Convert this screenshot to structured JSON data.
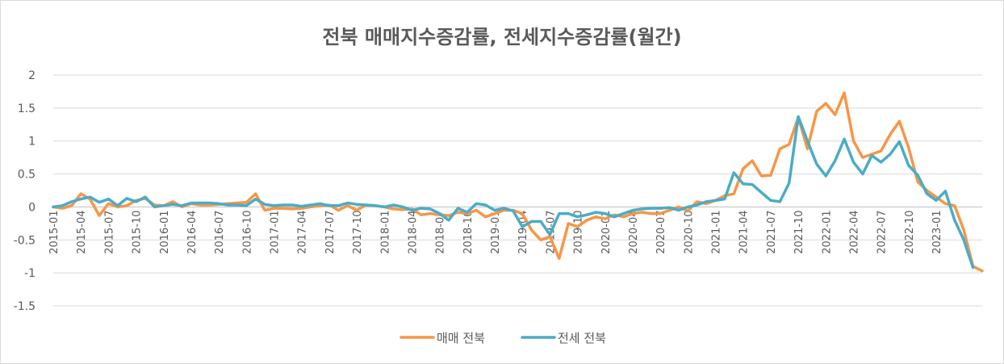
{
  "chart_data": {
    "type": "line",
    "title": "전북 매매지수증감률, 전세지수증감률(월간)",
    "xlabel": "",
    "ylabel": "",
    "ylim": [
      -1.5,
      2
    ],
    "yticks": [
      -1.5,
      -1,
      -0.5,
      0,
      0.5,
      1,
      1.5,
      2
    ],
    "grid": true,
    "legend_position": "bottom",
    "x_start": "2015-01",
    "x_labels": [
      "2015-01",
      "2015-04",
      "2015-07",
      "2015-10",
      "2016-01",
      "2016-04",
      "2016-07",
      "2016-10",
      "2017-01",
      "2017-04",
      "2017-07",
      "2017-10",
      "2018-01",
      "2018-04",
      "2018-07",
      "2018-10",
      "2019-01",
      "2019-04",
      "2019-07",
      "2019-10",
      "2020-01",
      "2020-04",
      "2020-07",
      "2020-10",
      "2021-01",
      "2021-04",
      "2021-07",
      "2021-10",
      "2022-01",
      "2022-04",
      "2022-07",
      "2022-10",
      "2023-01"
    ],
    "series": [
      {
        "name": "매매 전북",
        "color": "#F79646",
        "values": [
          0.0,
          -0.02,
          0.02,
          0.2,
          0.12,
          -0.13,
          0.05,
          0.0,
          0.02,
          0.1,
          0.13,
          0.03,
          0.02,
          0.08,
          0.0,
          0.05,
          0.03,
          0.03,
          0.04,
          0.05,
          0.06,
          0.07,
          0.2,
          -0.05,
          -0.02,
          -0.02,
          -0.03,
          -0.02,
          0.0,
          0.02,
          0.03,
          -0.05,
          0.02,
          -0.05,
          0.03,
          0.02,
          0.0,
          -0.03,
          -0.04,
          -0.03,
          -0.12,
          -0.1,
          -0.12,
          -0.13,
          -0.08,
          -0.1,
          -0.05,
          -0.15,
          -0.1,
          -0.05,
          -0.05,
          -0.1,
          -0.35,
          -0.5,
          -0.45,
          -0.78,
          -0.25,
          -0.3,
          -0.2,
          -0.15,
          -0.18,
          -0.12,
          -0.15,
          -0.1,
          -0.08,
          -0.1,
          -0.1,
          -0.05,
          0.0,
          -0.06,
          0.08,
          0.05,
          0.1,
          0.17,
          0.2,
          0.58,
          0.7,
          0.47,
          0.48,
          0.88,
          0.95,
          1.36,
          0.88,
          1.45,
          1.57,
          1.4,
          1.73,
          1.0,
          0.75,
          0.8,
          0.85,
          1.1,
          1.3,
          0.9,
          0.38,
          0.25,
          0.15,
          0.05,
          0.02,
          -0.35,
          -0.9,
          -0.97
        ]
      },
      {
        "name": "전세 전북",
        "color": "#4BACC6",
        "values": [
          0.0,
          0.02,
          0.08,
          0.12,
          0.15,
          0.07,
          0.12,
          0.02,
          0.13,
          0.08,
          0.15,
          0.0,
          0.02,
          0.04,
          0.02,
          0.06,
          0.06,
          0.06,
          0.05,
          0.03,
          0.03,
          0.02,
          0.12,
          0.04,
          0.02,
          0.03,
          0.03,
          0.01,
          0.03,
          0.05,
          0.02,
          0.02,
          0.06,
          0.04,
          0.03,
          0.02,
          0.0,
          0.03,
          0.0,
          -0.05,
          -0.02,
          -0.03,
          -0.1,
          -0.2,
          -0.02,
          -0.08,
          0.05,
          0.03,
          -0.05,
          -0.02,
          -0.06,
          -0.3,
          -0.22,
          -0.22,
          -0.42,
          -0.1,
          -0.1,
          -0.15,
          -0.12,
          -0.08,
          -0.1,
          -0.15,
          -0.1,
          -0.05,
          -0.03,
          -0.02,
          -0.02,
          -0.01,
          -0.05,
          0.0,
          0.03,
          0.08,
          0.1,
          0.12,
          0.52,
          0.35,
          0.34,
          0.22,
          0.1,
          0.08,
          0.36,
          1.37,
          1.0,
          0.65,
          0.47,
          0.7,
          1.03,
          0.68,
          0.5,
          0.78,
          0.68,
          0.8,
          0.99,
          0.63,
          0.48,
          0.2,
          0.1,
          0.24,
          -0.2,
          -0.5,
          -0.92
        ]
      }
    ]
  }
}
